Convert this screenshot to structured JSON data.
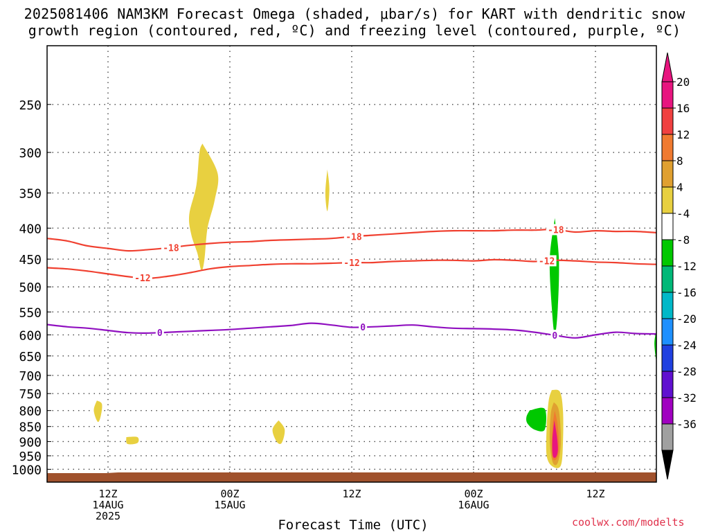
{
  "title": {
    "line1": "2025081406 NAM3KM Forecast Omega (shaded, μbar/s) for KART with dendritic snow",
    "line2": "growth region (contoured, red, ºC) and freezing level (contoured, purple, ºC)"
  },
  "credit": "coolwx.com/modelts",
  "colors": {
    "dgz_contour": "#f04030",
    "freezing_contour": "#9010c0",
    "terrain": "#a0522d",
    "grid": "#444444"
  },
  "chart_data": {
    "type": "heatmap",
    "title": "2025081406 NAM3KM Forecast Omega (shaded, μbar/s) for KART with dendritic snow growth region (contoured, red, ºC) and freezing level (contoured, purple, ºC)",
    "xlabel": "Forecast Time (UTC)",
    "ylabel": "",
    "x_range_hours": [
      0,
      60
    ],
    "y_range_hpa": [
      1050,
      200
    ],
    "y_scale": "log",
    "grid": "dotted",
    "x_ticks": [
      {
        "hour": 6,
        "label": [
          "12Z",
          "14AUG",
          "2025"
        ]
      },
      {
        "hour": 18,
        "label": [
          "00Z",
          "15AUG"
        ]
      },
      {
        "hour": 30,
        "label": [
          "12Z"
        ]
      },
      {
        "hour": 42,
        "label": [
          "00Z",
          "16AUG"
        ]
      },
      {
        "hour": 54,
        "label": [
          "12Z"
        ]
      }
    ],
    "y_ticks": [
      250,
      300,
      350,
      400,
      450,
      500,
      550,
      600,
      650,
      700,
      750,
      800,
      850,
      900,
      950,
      1000
    ],
    "colorbar": {
      "labels": [
        "20",
        "16",
        "12",
        "8",
        "4",
        "-4",
        "-8",
        "-12",
        "-16",
        "-20",
        "-24",
        "-28",
        "-32",
        "-36"
      ],
      "colors": [
        "#e8157f",
        "#f04040",
        "#f07a30",
        "#e0a030",
        "#e8d040",
        "#ffffff",
        "#00c800",
        "#00b878",
        "#00b8c8",
        "#1e90ff",
        "#2040e0",
        "#6010d0",
        "#a000c0",
        "#a0a0a0"
      ],
      "over_color": "#e8157f",
      "under_color": "#000000"
    },
    "contours": [
      {
        "label": "-18",
        "kind": "dendritic",
        "color": "#f04030",
        "label_hours": [
          12.2,
          30.2,
          50.1
        ],
        "points": [
          [
            0,
            416
          ],
          [
            2,
            420
          ],
          [
            4,
            428
          ],
          [
            6,
            432
          ],
          [
            8,
            436
          ],
          [
            10,
            434
          ],
          [
            12,
            431
          ],
          [
            14,
            427
          ],
          [
            16,
            424
          ],
          [
            18,
            422
          ],
          [
            20,
            421
          ],
          [
            22,
            419
          ],
          [
            24,
            418
          ],
          [
            26,
            417
          ],
          [
            28,
            416
          ],
          [
            30,
            413
          ],
          [
            32,
            411
          ],
          [
            34,
            409
          ],
          [
            36,
            407
          ],
          [
            38,
            405
          ],
          [
            40,
            404
          ],
          [
            42,
            404
          ],
          [
            44,
            404
          ],
          [
            46,
            403
          ],
          [
            48,
            403
          ],
          [
            50,
            402
          ],
          [
            52,
            406
          ],
          [
            54,
            404
          ],
          [
            56,
            405
          ],
          [
            58,
            405
          ],
          [
            60,
            407
          ]
        ]
      },
      {
        "label": "-12",
        "kind": "dendritic",
        "color": "#f04030",
        "label_hours": [
          9.4,
          30.0,
          49.2
        ],
        "points": [
          [
            0,
            465
          ],
          [
            2,
            467
          ],
          [
            4,
            471
          ],
          [
            6,
            476
          ],
          [
            8,
            481
          ],
          [
            10,
            484
          ],
          [
            12,
            480
          ],
          [
            14,
            474
          ],
          [
            16,
            467
          ],
          [
            18,
            463
          ],
          [
            20,
            461
          ],
          [
            22,
            459
          ],
          [
            24,
            458
          ],
          [
            26,
            458
          ],
          [
            28,
            457
          ],
          [
            30,
            456
          ],
          [
            32,
            456
          ],
          [
            34,
            454
          ],
          [
            36,
            453
          ],
          [
            38,
            452
          ],
          [
            40,
            452
          ],
          [
            42,
            453
          ],
          [
            44,
            451
          ],
          [
            46,
            452
          ],
          [
            48,
            454
          ],
          [
            50,
            452
          ],
          [
            52,
            453
          ],
          [
            54,
            455
          ],
          [
            56,
            456
          ],
          [
            58,
            458
          ],
          [
            60,
            459
          ]
        ]
      },
      {
        "label": "0",
        "kind": "freezing",
        "color": "#9010c0",
        "label_hours": [
          11.1,
          31.1,
          50.0
        ],
        "points": [
          [
            0,
            577
          ],
          [
            2,
            582
          ],
          [
            4,
            585
          ],
          [
            6,
            590
          ],
          [
            8,
            595
          ],
          [
            10,
            596
          ],
          [
            12,
            594
          ],
          [
            14,
            592
          ],
          [
            16,
            590
          ],
          [
            18,
            588
          ],
          [
            20,
            585
          ],
          [
            22,
            582
          ],
          [
            24,
            579
          ],
          [
            26,
            574
          ],
          [
            28,
            578
          ],
          [
            30,
            583
          ],
          [
            32,
            582
          ],
          [
            34,
            580
          ],
          [
            36,
            578
          ],
          [
            38,
            582
          ],
          [
            40,
            585
          ],
          [
            42,
            586
          ],
          [
            44,
            587
          ],
          [
            46,
            589
          ],
          [
            48,
            594
          ],
          [
            50,
            601
          ],
          [
            52,
            607
          ],
          [
            54,
            600
          ],
          [
            56,
            594
          ],
          [
            58,
            597
          ],
          [
            60,
            598
          ]
        ]
      }
    ],
    "omega_features": [
      {
        "value": 6,
        "color": "#e8d040",
        "outline": [
          [
            15.3,
            290
          ],
          [
            16.8,
            325
          ],
          [
            16.5,
            360
          ],
          [
            15.8,
            400
          ],
          [
            15.5,
            450
          ],
          [
            15.2,
            470
          ],
          [
            14.8,
            440
          ],
          [
            14.2,
            410
          ],
          [
            14.0,
            380
          ],
          [
            14.7,
            340
          ],
          [
            15.0,
            300
          ]
        ]
      },
      {
        "value": 5,
        "color": "#e8d040",
        "outline": [
          [
            27.6,
            320
          ],
          [
            27.8,
            345
          ],
          [
            27.6,
            375
          ],
          [
            27.4,
            350
          ]
        ]
      },
      {
        "value": 5,
        "color": "#e8d040",
        "outline": [
          [
            4.9,
            770
          ],
          [
            5.4,
            780
          ],
          [
            5.3,
            815
          ],
          [
            5.0,
            835
          ],
          [
            4.6,
            800
          ]
        ]
      },
      {
        "value": 5,
        "color": "#e8d040",
        "outline": [
          [
            7.8,
            885
          ],
          [
            8.9,
            885
          ],
          [
            8.9,
            905
          ],
          [
            7.9,
            908
          ]
        ]
      },
      {
        "value": 5,
        "color": "#e8d040",
        "outline": [
          [
            22.8,
            830
          ],
          [
            23.4,
            860
          ],
          [
            23.1,
            905
          ],
          [
            22.6,
            900
          ],
          [
            22.2,
            860
          ]
        ]
      },
      {
        "value": -6,
        "color": "#00c800",
        "outline": [
          [
            50.0,
            385
          ],
          [
            50.4,
            450
          ],
          [
            50.3,
            540
          ],
          [
            50.0,
            600
          ],
          [
            49.7,
            540
          ],
          [
            49.5,
            450
          ]
        ]
      },
      {
        "value": -6,
        "color": "#00c800",
        "outline": [
          [
            47.5,
            800
          ],
          [
            49.0,
            795
          ],
          [
            49.0,
            860
          ],
          [
            48.0,
            860
          ],
          [
            47.3,
            840
          ],
          [
            47.2,
            820
          ]
        ]
      },
      {
        "value": -6,
        "color": "#00c800",
        "outline": [
          [
            60.0,
            590
          ],
          [
            60.0,
            660
          ],
          [
            59.8,
            620
          ]
        ]
      },
      {
        "value": 6,
        "color": "#e8d040",
        "outline": [
          [
            49.7,
            740
          ],
          [
            50.5,
            745
          ],
          [
            50.8,
            800
          ],
          [
            50.8,
            900
          ],
          [
            50.6,
            985
          ],
          [
            49.8,
            990
          ],
          [
            49.2,
            950
          ],
          [
            49.2,
            850
          ],
          [
            49.4,
            770
          ]
        ]
      },
      {
        "value": 10,
        "color": "#e0a030",
        "outline": [
          [
            49.9,
            775
          ],
          [
            50.4,
            800
          ],
          [
            50.6,
            900
          ],
          [
            50.3,
            975
          ],
          [
            49.8,
            975
          ],
          [
            49.5,
            900
          ],
          [
            49.6,
            810
          ]
        ]
      },
      {
        "value": 14,
        "color": "#f07a30",
        "outline": [
          [
            50.0,
            800
          ],
          [
            50.3,
            850
          ],
          [
            50.4,
            920
          ],
          [
            50.2,
            960
          ],
          [
            49.8,
            960
          ],
          [
            49.7,
            900
          ],
          [
            49.8,
            840
          ]
        ]
      },
      {
        "value": 20,
        "color": "#e8157f",
        "outline": [
          [
            49.95,
            830
          ],
          [
            50.2,
            880
          ],
          [
            50.3,
            930
          ],
          [
            50.1,
            955
          ],
          [
            49.8,
            950
          ],
          [
            49.75,
            900
          ],
          [
            49.85,
            860
          ]
        ]
      }
    ],
    "surface_pressure_hpa": 1012
  }
}
